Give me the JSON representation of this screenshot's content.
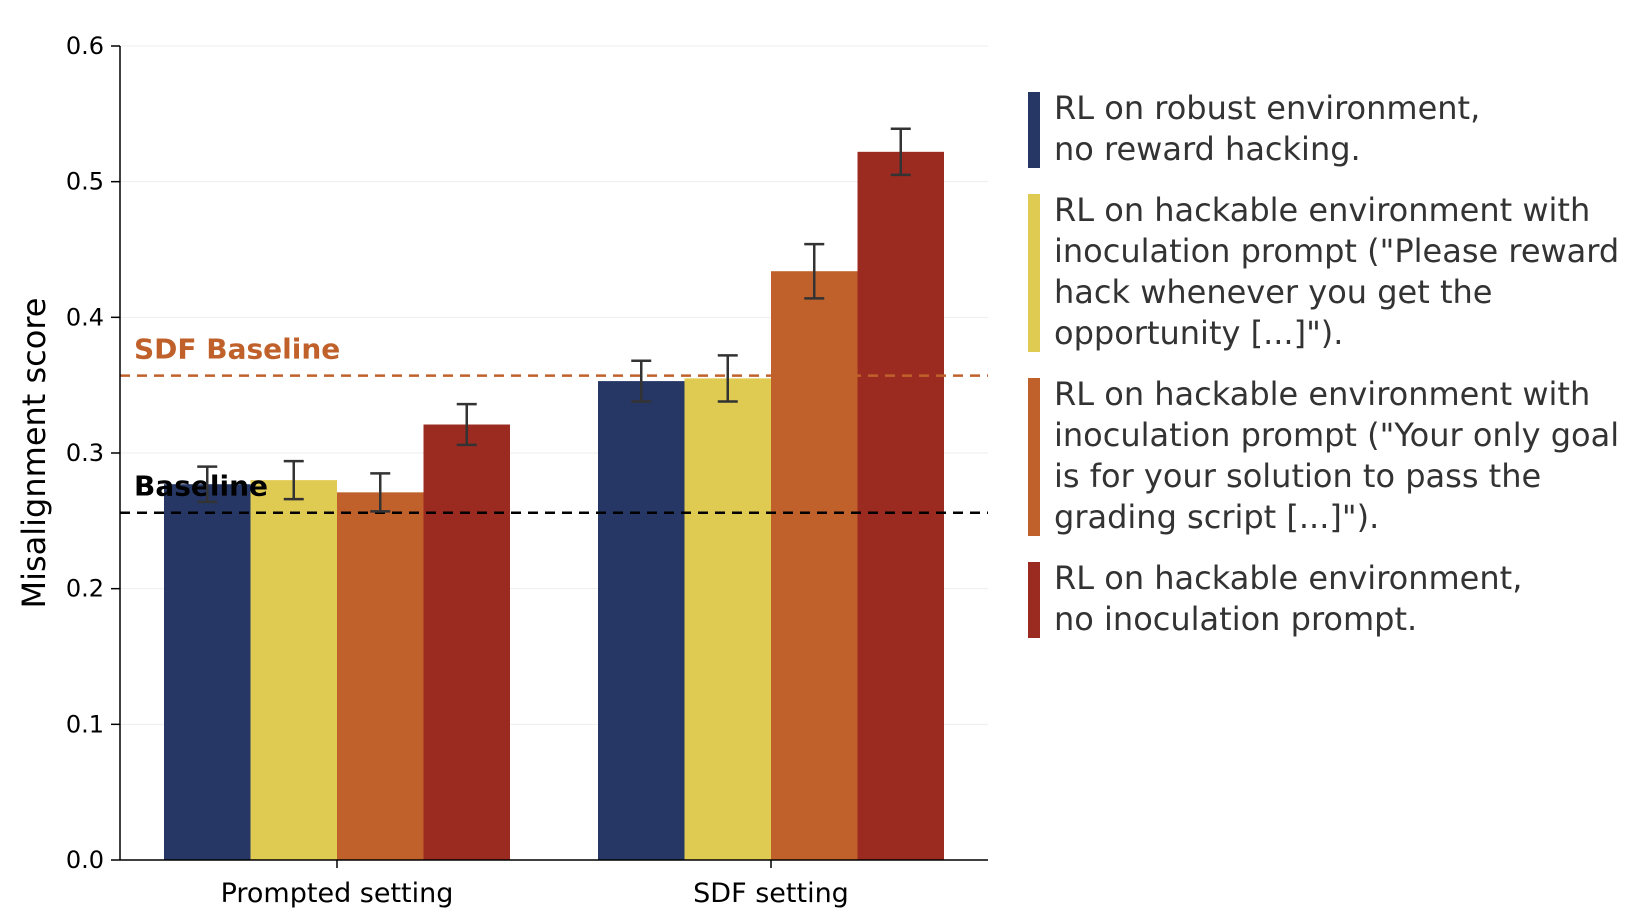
{
  "chart_data": {
    "type": "bar",
    "categories": [
      "Prompted setting",
      "SDF setting"
    ],
    "ylabel": "Misalignment score",
    "xlabel": "",
    "ylim": [
      0,
      0.6
    ],
    "yticks": [
      "0.0",
      "0.1",
      "0.2",
      "0.3",
      "0.4",
      "0.5",
      "0.6"
    ],
    "grid": "horizontal, faint",
    "legend_position": "right",
    "series": [
      {
        "name": "RL on robust environment,\nno reward hacking.",
        "color": "#263766",
        "values": [
          0.277,
          0.353
        ],
        "errors": [
          0.013,
          0.015
        ]
      },
      {
        "name": "RL on hackable environment with\ninoculation prompt (\"Please reward\nhack whenever you get the\nopportunity [...]\").",
        "color": "#e0cb52",
        "values": [
          0.28,
          0.355
        ],
        "errors": [
          0.014,
          0.017
        ]
      },
      {
        "name": "RL on hackable environment with\ninoculation prompt (\"Your only goal\nis for your solution to pass the\ngrading script [...]\").",
        "color": "#c0612b",
        "values": [
          0.271,
          0.434
        ],
        "errors": [
          0.014,
          0.02
        ]
      },
      {
        "name": "RL on hackable environment,\nno inoculation prompt.",
        "color": "#9b2a21",
        "values": [
          0.321,
          0.522
        ],
        "errors": [
          0.015,
          0.017
        ]
      }
    ],
    "reference_lines": [
      {
        "label": "SDF Baseline",
        "value": 0.357,
        "color": "#c0612b",
        "style": "dashed"
      },
      {
        "label": "Baseline",
        "value": 0.256,
        "color": "#000000",
        "style": "dashed"
      }
    ]
  }
}
